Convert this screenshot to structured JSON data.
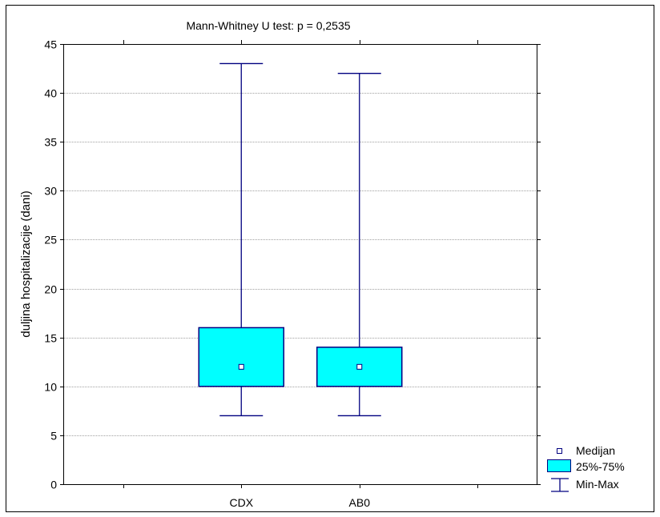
{
  "chart_data": {
    "type": "boxplot",
    "title": "Mann-Whitney U test: p = 0,2535",
    "xlabel": "",
    "ylabel": "duljina hospitalizacije (dani)",
    "ylim": [
      0,
      45
    ],
    "yticks": [
      "0",
      "5",
      "10",
      "15",
      "20",
      "25",
      "30",
      "35",
      "40",
      "45"
    ],
    "categories": [
      "CDX",
      "AB0"
    ],
    "boxes": [
      {
        "category": "CDX",
        "min": 7,
        "q1": 10,
        "median": 12,
        "q3": 16,
        "max": 43
      },
      {
        "category": "AB0",
        "min": 7,
        "q1": 10,
        "median": 12,
        "q3": 14,
        "max": 42
      }
    ],
    "grid": true,
    "legend_position": "bottom-right",
    "legend": [
      {
        "key": "median",
        "label": "Medijan"
      },
      {
        "key": "box",
        "label": "25%-75%"
      },
      {
        "key": "whisker",
        "label": "Min-Max"
      }
    ],
    "colors": {
      "box_fill": "#00FFFF",
      "line": "#000080",
      "grid": "#A0A0A0",
      "axis": "#000000",
      "median_fill": "#FFFFFF"
    }
  }
}
